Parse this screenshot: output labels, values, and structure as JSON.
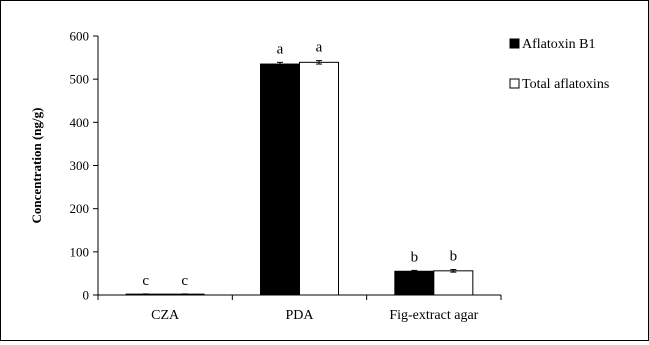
{
  "chart_data": {
    "type": "bar",
    "title": "",
    "xlabel": "",
    "ylabel": "Concentration (ng/g)",
    "ylim": [
      0,
      600
    ],
    "yticks": [
      0,
      100,
      200,
      300,
      400,
      500,
      600
    ],
    "grid": false,
    "legend_position": "top-right",
    "categories": [
      "CZA",
      "PDA",
      "Fig-extract agar"
    ],
    "series": [
      {
        "name": "Aflatoxin B1",
        "color": "#000000",
        "values": [
          2,
          535,
          55
        ],
        "errors": [
          0.5,
          4,
          2
        ],
        "letters": [
          "c",
          "a",
          "b"
        ]
      },
      {
        "name": "Total aflatoxins",
        "color": "#ffffff",
        "values": [
          2,
          539,
          56
        ],
        "errors": [
          0.5,
          4,
          3
        ],
        "letters": [
          "c",
          "a",
          "b"
        ]
      }
    ]
  }
}
